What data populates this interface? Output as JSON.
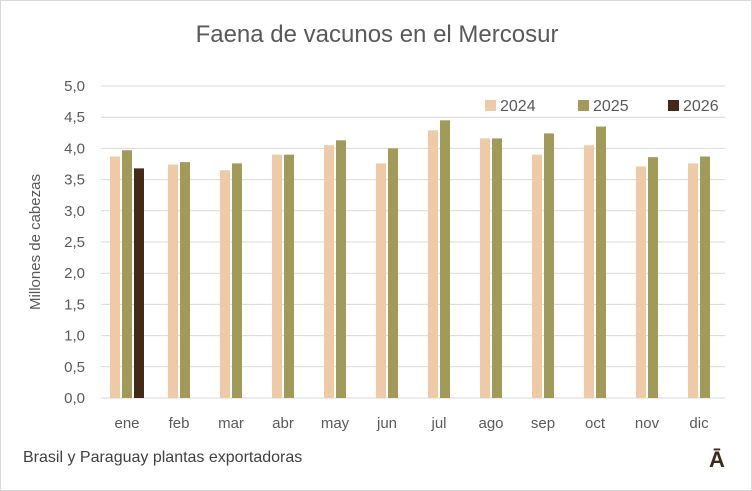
{
  "chart_data": {
    "type": "bar",
    "title": "Faena de vacunos en el Mercosur",
    "xlabel": "",
    "ylabel": "Millones de cabezas",
    "ylim": [
      0,
      5
    ],
    "yticks": [
      "0,0",
      "0,5",
      "1,0",
      "1,5",
      "2,0",
      "2,5",
      "3,0",
      "3,5",
      "4,0",
      "4,5",
      "5,0"
    ],
    "grid": true,
    "legend_position": "top-right",
    "categories": [
      "ene",
      "feb",
      "mar",
      "abr",
      "may",
      "jun",
      "jul",
      "ago",
      "sep",
      "oct",
      "nov",
      "dic"
    ],
    "series": [
      {
        "name": "2024",
        "color": "#EECAA6",
        "values": [
          3.87,
          3.74,
          3.65,
          3.9,
          4.05,
          3.76,
          4.29,
          4.16,
          3.9,
          4.05,
          3.71,
          3.76
        ]
      },
      {
        "name": "2025",
        "color": "#A19A59",
        "values": [
          3.97,
          3.78,
          3.76,
          3.9,
          4.13,
          4.0,
          4.45,
          4.16,
          4.24,
          4.35,
          3.86,
          3.87
        ]
      },
      {
        "name": "2026",
        "color": "#432A18",
        "values": [
          3.68,
          null,
          null,
          null,
          null,
          null,
          null,
          null,
          null,
          null,
          null,
          null
        ]
      }
    ]
  },
  "footer": "Brasil y Paraguay plantas exportadoras",
  "logo": "Ā"
}
